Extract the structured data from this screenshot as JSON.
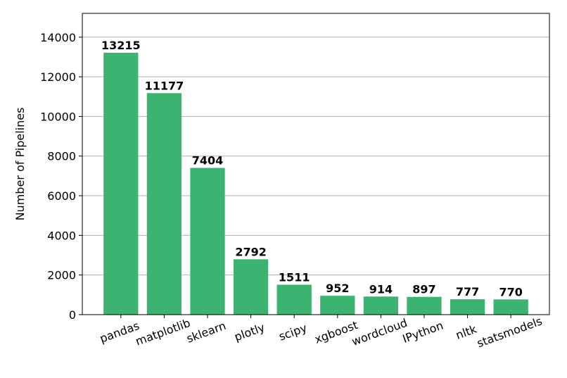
{
  "chart_data": {
    "type": "bar",
    "y_label": "Number of Pipelines",
    "categories": [
      "pandas",
      "matplotlib",
      "sklearn",
      "plotly",
      "scipy",
      "xgboost",
      "wordcloud",
      "IPython",
      "nltk",
      "statsmodels"
    ],
    "values": [
      13215,
      11177,
      7404,
      2792,
      1511,
      952,
      914,
      897,
      777,
      770
    ],
    "color": "#3cb371",
    "ylim": [
      0,
      15200
    ],
    "yticks": [
      0,
      2000,
      4000,
      6000,
      8000,
      10000,
      12000,
      14000
    ],
    "grid": true
  }
}
